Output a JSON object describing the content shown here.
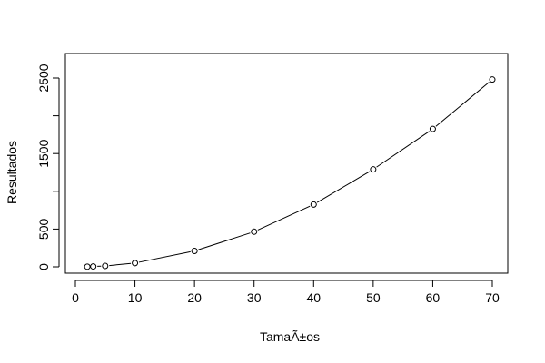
{
  "chart_data": {
    "type": "line",
    "title": "",
    "xlabel": "TamaÃ±os",
    "ylabel": "Resultados",
    "xlim": [
      0,
      70
    ],
    "ylim": [
      0,
      2500
    ],
    "x_ticks": [
      0,
      10,
      20,
      30,
      40,
      50,
      60,
      70
    ],
    "x_tick_labels": [
      "0",
      "10",
      "20",
      "30",
      "40",
      "50",
      "60",
      "70"
    ],
    "y_ticks": [
      0,
      500,
      1000,
      1500,
      2000,
      2500
    ],
    "y_tick_labels": [
      "0",
      "500",
      "",
      "1500",
      "",
      "2500"
    ],
    "grid": false,
    "legend": "none",
    "series": [
      {
        "marker": "open-circle",
        "line": true,
        "x": [
          2,
          3,
          5,
          10,
          20,
          30,
          40,
          50,
          60,
          70
        ],
        "y": [
          2,
          5,
          12,
          50,
          210,
          465,
          825,
          1290,
          1825,
          2480
        ]
      }
    ]
  }
}
